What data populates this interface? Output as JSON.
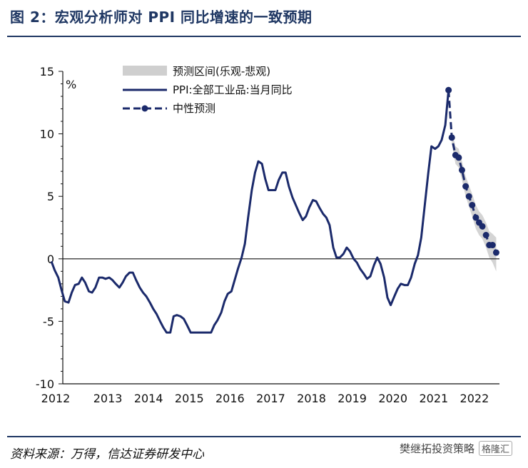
{
  "header": {
    "title": "图 2：宏观分析师对 PPI 同比增速的一致预期"
  },
  "footer": {
    "source": "资料来源：万得，信达证券研发中心"
  },
  "watermark": {
    "account": "樊继拓投资策略",
    "badge": "格隆汇"
  },
  "colors": {
    "series_line": "#1b2a6b",
    "band": "#cfcfcf",
    "title": "#1f3763"
  },
  "chart_data": {
    "type": "line",
    "unit_label": "%",
    "ylim": [
      -10,
      15
    ],
    "yticks": [
      -10,
      -5,
      0,
      5,
      10,
      15
    ],
    "ytick_labels": [
      "-10",
      "-5",
      "0",
      "5",
      "10",
      "15"
    ],
    "xlim": [
      2012.0,
      2022.9
    ],
    "xticks": [
      2012,
      2013,
      2014,
      2015,
      2016,
      2017,
      2018,
      2019,
      2020,
      2021,
      2022
    ],
    "xtick_labels": [
      "2012",
      "2013",
      "2014",
      "2015",
      "2016",
      "2017",
      "2018",
      "2019",
      "2020",
      "2021",
      "2022"
    ],
    "legend": {
      "position": "top-left",
      "entries": [
        "预测区间(乐观-悲观)",
        "PPI:全部工业品:当月同比",
        "中性预测"
      ]
    },
    "series": [
      {
        "name": "PPI:全部工业品:当月同比",
        "style": "solid",
        "x": [
          2012.0,
          2012.08,
          2012.17,
          2012.25,
          2012.33,
          2012.42,
          2012.5,
          2012.58,
          2012.67,
          2012.75,
          2012.83,
          2012.92,
          2013.0,
          2013.08,
          2013.17,
          2013.25,
          2013.33,
          2013.42,
          2013.5,
          2013.58,
          2013.67,
          2013.75,
          2013.83,
          2013.92,
          2014.0,
          2014.08,
          2014.17,
          2014.25,
          2014.33,
          2014.42,
          2014.5,
          2014.58,
          2014.67,
          2014.75,
          2014.83,
          2014.92,
          2015.0,
          2015.08,
          2015.17,
          2015.25,
          2015.33,
          2015.42,
          2015.5,
          2015.58,
          2015.67,
          2015.75,
          2015.83,
          2015.92,
          2016.0,
          2016.08,
          2016.17,
          2016.25,
          2016.33,
          2016.42,
          2016.5,
          2016.58,
          2016.67,
          2016.75,
          2016.83,
          2016.92,
          2017.0,
          2017.08,
          2017.17,
          2017.25,
          2017.33,
          2017.42,
          2017.5,
          2017.58,
          2017.67,
          2017.75,
          2017.83,
          2017.92,
          2018.0,
          2018.08,
          2018.17,
          2018.25,
          2018.33,
          2018.42,
          2018.5,
          2018.58,
          2018.67,
          2018.75,
          2018.83,
          2018.92,
          2019.0,
          2019.08,
          2019.17,
          2019.25,
          2019.33,
          2019.42,
          2019.5,
          2019.58,
          2019.67,
          2019.75,
          2019.83,
          2019.92,
          2020.0,
          2020.08,
          2020.17,
          2020.25,
          2020.33,
          2020.42,
          2020.5,
          2020.58,
          2020.67,
          2020.75,
          2020.83,
          2020.92,
          2021.0,
          2021.08,
          2021.17,
          2021.25,
          2021.33,
          2021.42,
          2021.5,
          2021.58,
          2021.67,
          2021.75
        ],
        "y": [
          -0.2,
          -0.9,
          -1.5,
          -2.5,
          -3.4,
          -3.5,
          -2.7,
          -2.1,
          -2.0,
          -1.5,
          -1.9,
          -2.6,
          -2.7,
          -2.3,
          -1.5,
          -1.5,
          -1.6,
          -1.5,
          -1.7,
          -2.0,
          -2.3,
          -1.9,
          -1.4,
          -1.1,
          -1.1,
          -1.7,
          -2.3,
          -2.7,
          -3.0,
          -3.5,
          -4.0,
          -4.4,
          -5.0,
          -5.5,
          -5.9,
          -5.9,
          -4.6,
          -4.5,
          -4.6,
          -4.8,
          -5.3,
          -5.9,
          -5.9,
          -5.9,
          -5.9,
          -5.9,
          -5.9,
          -5.9,
          -5.3,
          -4.9,
          -4.3,
          -3.4,
          -2.8,
          -2.6,
          -1.7,
          -0.8,
          0.1,
          1.2,
          3.3,
          5.5,
          6.9,
          7.8,
          7.6,
          6.4,
          5.5,
          5.5,
          5.5,
          6.3,
          6.9,
          6.9,
          5.8,
          4.9,
          4.3,
          3.7,
          3.1,
          3.4,
          4.1,
          4.7,
          4.6,
          4.1,
          3.6,
          3.3,
          2.7,
          0.9,
          0.1,
          0.1,
          0.4,
          0.9,
          0.6,
          0.0,
          -0.3,
          -0.8,
          -1.2,
          -1.6,
          -1.4,
          -0.5,
          0.1,
          -0.4,
          -1.5,
          -3.1,
          -3.7,
          -3.0,
          -2.4,
          -2.0,
          -2.1,
          -2.1,
          -1.5,
          -0.4,
          0.3,
          1.7,
          4.4,
          6.8,
          9.0,
          8.8,
          9.0,
          9.5,
          10.7,
          13.5
        ]
      },
      {
        "name": "中性预测",
        "style": "dashed-dot",
        "x": [
          2021.75,
          2021.83,
          2021.92,
          2022.0,
          2022.08,
          2022.17,
          2022.25,
          2022.33,
          2022.42,
          2022.5,
          2022.58,
          2022.67,
          2022.75,
          2022.83,
          2022.92
        ],
        "y": [
          13.5,
          9.7,
          8.3,
          8.1,
          7.1,
          5.8,
          5.0,
          4.3,
          3.3,
          2.9,
          2.6,
          1.9,
          1.1,
          1.1,
          0.5
        ]
      }
    ],
    "band": {
      "name": "预测区间(乐观-悲观)",
      "x": [
        2021.83,
        2021.92,
        2022.0,
        2022.08,
        2022.17,
        2022.25,
        2022.33,
        2022.42,
        2022.5,
        2022.58,
        2022.67,
        2022.75,
        2022.83,
        2022.92
      ],
      "upper": [
        10.2,
        9.0,
        8.8,
        7.8,
        6.6,
        5.9,
        5.2,
        4.3,
        3.8,
        3.5,
        2.9,
        2.2,
        2.0,
        1.7
      ],
      "lower": [
        9.2,
        7.6,
        7.3,
        6.3,
        5.0,
        4.2,
        3.4,
        2.4,
        1.9,
        1.6,
        0.9,
        0.1,
        -0.3,
        -1.0
      ]
    }
  }
}
